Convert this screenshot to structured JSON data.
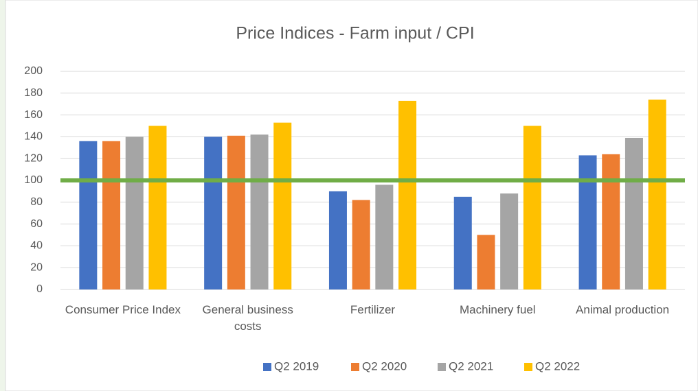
{
  "chart_data": {
    "type": "bar",
    "title": "Price Indices - Farm input / CPI",
    "categories": [
      "Consumer Price Index",
      "General business costs",
      "Fertilizer",
      "Machinery fuel",
      "Animal production"
    ],
    "series": [
      {
        "name": "Q2 2019",
        "color": "#4472c4",
        "values": [
          136,
          140,
          90,
          85,
          123
        ]
      },
      {
        "name": "Q2 2020",
        "color": "#ed7d31",
        "values": [
          136,
          141,
          82,
          50,
          124
        ]
      },
      {
        "name": "Q2 2021",
        "color": "#a5a5a5",
        "values": [
          140,
          142,
          96,
          88,
          139
        ]
      },
      {
        "name": "Q2 2022",
        "color": "#ffc000",
        "values": [
          150,
          153,
          173,
          150,
          174
        ]
      }
    ],
    "reference_line": {
      "value": 100,
      "color": "#70ad47"
    },
    "ylim": [
      0,
      200
    ],
    "yticks": [
      0,
      20,
      40,
      60,
      80,
      100,
      120,
      140,
      160,
      180,
      200
    ],
    "grid": true,
    "legend": "bottom"
  }
}
